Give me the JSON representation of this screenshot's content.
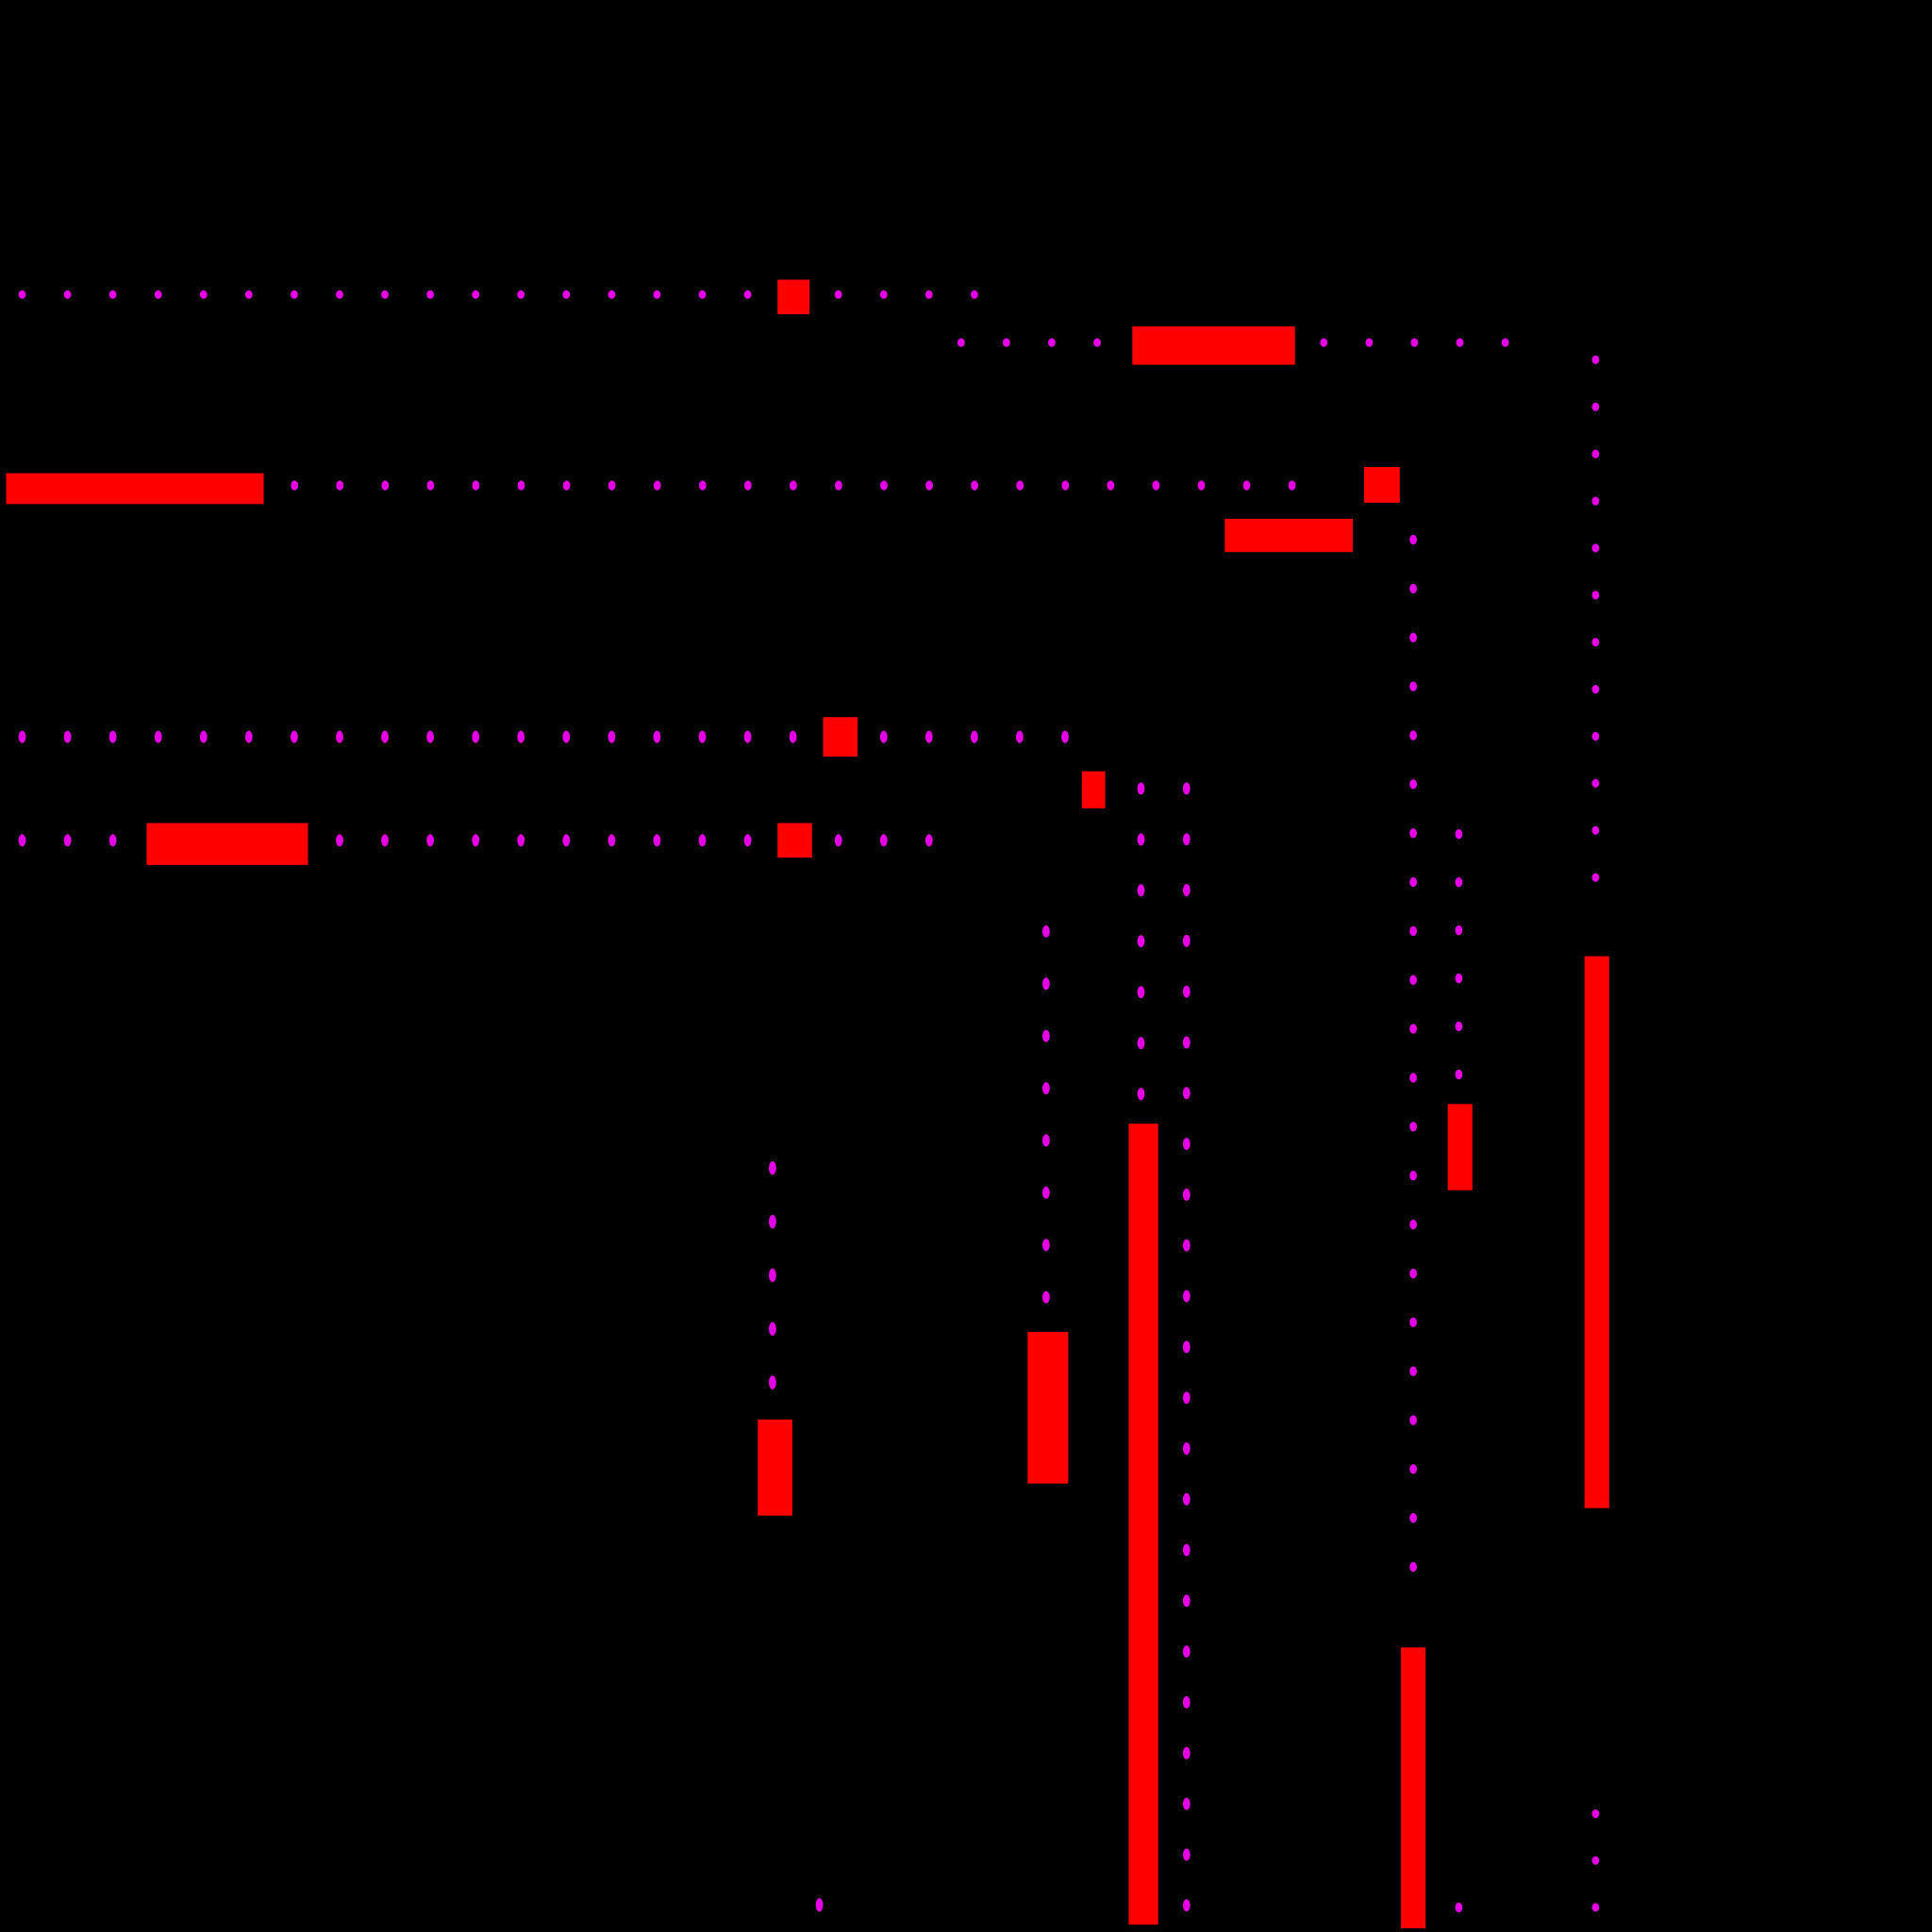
{
  "game": {
    "background_color": "#000000",
    "pellet_color": "#e600e6",
    "wall_color": "#ff0000",
    "maze_layout": [
      "..........................................",
      "..........................................",
      "..........................................",
      "..........................................",
      "..........................................",
      "..........................................",
      "..........................................",
      "..........................................",
      "..........................................",
      "..........................................",
      "..........................................",
      "..........................................",
      "..........................................",
      "..........................................",
      "..........................................",
      "..........................................",
      ".........................................."
    ]
  }
}
